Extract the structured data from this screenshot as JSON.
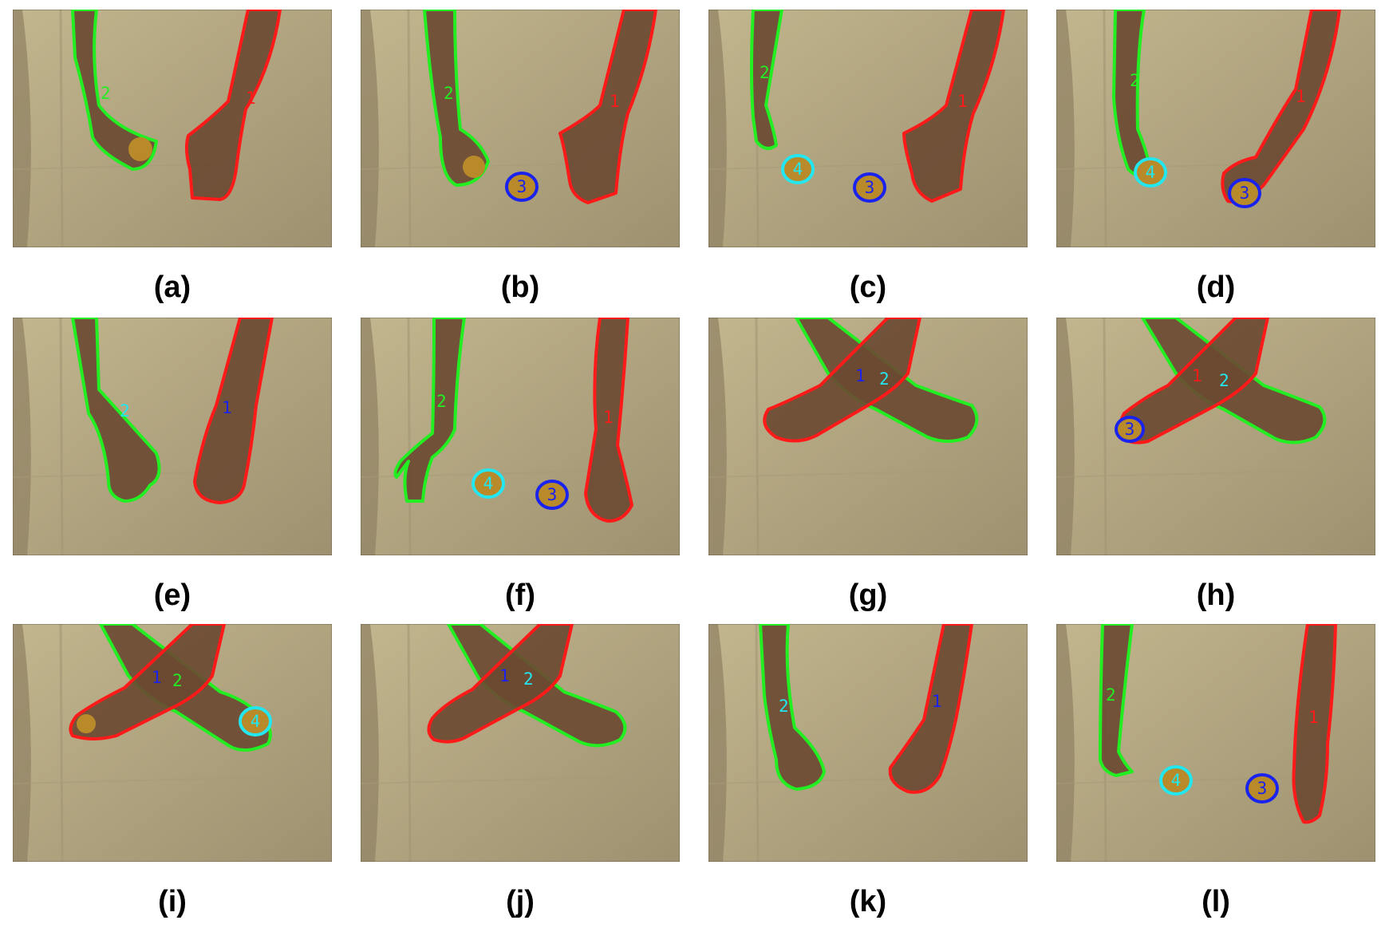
{
  "figure": {
    "panels": [
      {
        "caption": "(a)",
        "scene": "a"
      },
      {
        "caption": "(b)",
        "scene": "b"
      },
      {
        "caption": "(c)",
        "scene": "c"
      },
      {
        "caption": "(d)",
        "scene": "d"
      },
      {
        "caption": "(e)",
        "scene": "e"
      },
      {
        "caption": "(f)",
        "scene": "f"
      },
      {
        "caption": "(g)",
        "scene": "g"
      },
      {
        "caption": "(h)",
        "scene": "h"
      },
      {
        "caption": "(i)",
        "scene": "i"
      },
      {
        "caption": "(j)",
        "scene": "j"
      },
      {
        "caption": "(k)",
        "scene": "k"
      },
      {
        "caption": "(l)",
        "scene": "l"
      }
    ],
    "track_ids": {
      "right_hand": "1",
      "left_hand": "2",
      "ball_blue": "3",
      "ball_cyan": "4"
    },
    "colors": {
      "right_hand": "#ff1a1a",
      "left_hand": "#22ee22",
      "ball_blue": "#1a22ee",
      "ball_cyan": "#22e6f0",
      "background": "#b3a680",
      "skin": "#6b4a32",
      "ball_fill": "#b88a2a"
    }
  }
}
